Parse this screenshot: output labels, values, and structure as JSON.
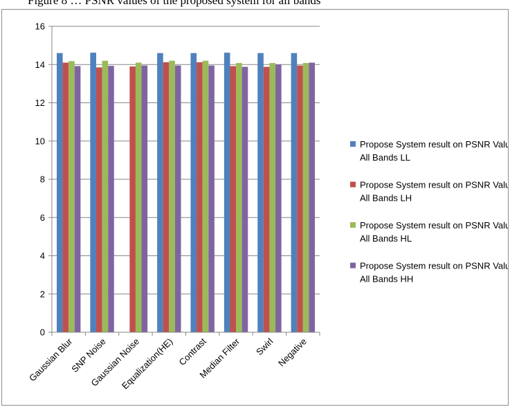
{
  "header_text": "Figure 8 … PSNR values of the proposed system for all bands",
  "chart_data": {
    "type": "bar",
    "title": "",
    "xlabel": "",
    "ylabel": "",
    "ylim": [
      0,
      16
    ],
    "yticks": [
      0,
      2,
      4,
      6,
      8,
      10,
      12,
      14,
      16
    ],
    "grid": true,
    "legend_position": "right",
    "categories": [
      "Gaussian Blur",
      "SNP Noise",
      "Gaussian Noise",
      "Equalization(HE)",
      "Contrast",
      "Median Filter",
      "Swirl",
      "Negative"
    ],
    "series": [
      {
        "name": "Propose System result on PSNR Values All Bands LL",
        "color": "#4f81bd",
        "values": [
          14.6,
          14.62,
          0,
          14.6,
          14.6,
          14.62,
          14.6,
          14.6
        ]
      },
      {
        "name": "Propose System result on PSNR Values All Bands LH",
        "color": "#c0504d",
        "values": [
          14.1,
          13.85,
          13.9,
          14.12,
          14.12,
          13.92,
          13.88,
          13.95
        ]
      },
      {
        "name": "Propose System result on PSNR Values All Bands HL",
        "color": "#9bbb59",
        "values": [
          14.18,
          14.2,
          14.1,
          14.2,
          14.2,
          14.08,
          14.08,
          14.08
        ]
      },
      {
        "name": "Propose System result on PSNR Values All Bands HH",
        "color": "#8064a2",
        "values": [
          13.92,
          13.93,
          13.95,
          13.95,
          13.95,
          13.88,
          14.0,
          14.1
        ]
      }
    ]
  }
}
